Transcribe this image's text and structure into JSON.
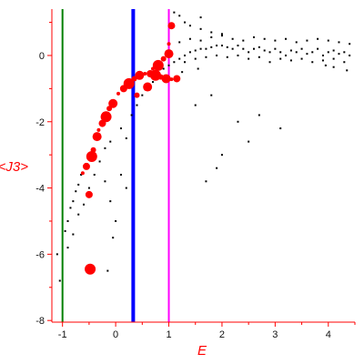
{
  "chart_data": {
    "type": "scatter",
    "title": "",
    "xlabel": "E",
    "ylabel": "<J3>",
    "xlim": [
      -1.2,
      4.5
    ],
    "ylim": [
      -8.05,
      1.4
    ],
    "x_ticks": [
      -1,
      0,
      1,
      2,
      3,
      4
    ],
    "y_ticks": [
      0,
      -2,
      -4,
      -6,
      -8
    ],
    "x_tick_labels": [
      "-1",
      "0",
      "1",
      "2",
      "3",
      "4"
    ],
    "y_tick_labels": [
      "0",
      "-2",
      "-4",
      "-6",
      "-8"
    ],
    "grid": false,
    "colors": {
      "axes": "#ff0000",
      "small_points": "#000000",
      "large_points": "#ff0000",
      "line_green": "#008000",
      "line_blue": "#0000ff",
      "line_magenta": "#ff00ff"
    },
    "vertical_lines": [
      {
        "x": -1.0,
        "color": "#008000"
      },
      {
        "x": 0.33,
        "color": "#0000ff"
      },
      {
        "x": 1.0,
        "color": "#ff00ff"
      }
    ],
    "large_points": [
      [
        -0.62,
        -3.55
      ],
      [
        -0.55,
        -3.35
      ],
      [
        -0.45,
        -3.05
      ],
      [
        -0.42,
        -2.85
      ],
      [
        -0.35,
        -2.45
      ],
      [
        -0.32,
        -2.25
      ],
      [
        -0.25,
        -2.05
      ],
      [
        -0.18,
        -1.85
      ],
      [
        -0.12,
        -1.6
      ],
      [
        -0.05,
        -1.45
      ],
      [
        0.05,
        -1.15
      ],
      [
        0.15,
        -1.0
      ],
      [
        0.25,
        -0.85
      ],
      [
        0.35,
        -0.7
      ],
      [
        0.45,
        -0.6
      ],
      [
        0.55,
        -0.55
      ],
      [
        0.65,
        -0.55
      ],
      [
        0.75,
        -0.6
      ],
      [
        0.85,
        -0.65
      ],
      [
        0.95,
        -0.7
      ],
      [
        1.05,
        -0.72
      ],
      [
        1.15,
        -0.7
      ],
      [
        0.8,
        -0.3
      ],
      [
        0.9,
        -0.1
      ],
      [
        1.0,
        0.05
      ],
      [
        0.7,
        -0.4
      ],
      [
        -0.5,
        -4.2
      ],
      [
        -0.48,
        -6.45
      ],
      [
        0.4,
        -1.2
      ],
      [
        0.6,
        -0.95
      ],
      [
        1.0,
        0.35
      ],
      [
        1.05,
        0.9
      ]
    ],
    "small_points": [
      [
        -1.1,
        -6.0
      ],
      [
        -1.05,
        -6.8
      ],
      [
        -0.95,
        -5.3
      ],
      [
        -0.9,
        -5.0
      ],
      [
        -0.85,
        -4.6
      ],
      [
        -0.8,
        -4.4
      ],
      [
        -0.75,
        -4.1
      ],
      [
        -0.7,
        -3.9
      ],
      [
        -0.65,
        -3.6
      ],
      [
        -0.9,
        -5.8
      ],
      [
        -0.8,
        -5.4
      ],
      [
        -0.7,
        -4.8
      ],
      [
        -0.6,
        -4.5
      ],
      [
        -0.5,
        -4.0
      ],
      [
        -0.4,
        -3.6
      ],
      [
        -0.3,
        -3.2
      ],
      [
        -0.2,
        -2.8
      ],
      [
        -0.1,
        -2.6
      ],
      [
        -0.2,
        -3.8
      ],
      [
        -0.1,
        -4.4
      ],
      [
        0.0,
        -5.0
      ],
      [
        0.1,
        -3.6
      ],
      [
        0.2,
        -4.0
      ],
      [
        -0.15,
        -6.5
      ],
      [
        -0.05,
        -5.5
      ],
      [
        0.1,
        -2.2
      ],
      [
        0.2,
        -2.5
      ],
      [
        0.3,
        -1.8
      ],
      [
        0.4,
        -1.5
      ],
      [
        0.5,
        -1.2
      ],
      [
        0.6,
        -1.0
      ],
      [
        0.7,
        -0.8
      ],
      [
        0.8,
        -0.6
      ],
      [
        0.9,
        -0.4
      ],
      [
        1.0,
        -0.3
      ],
      [
        1.1,
        -0.2
      ],
      [
        1.2,
        -0.1
      ],
      [
        1.3,
        0.0
      ],
      [
        1.4,
        0.1
      ],
      [
        1.5,
        0.15
      ],
      [
        1.6,
        0.2
      ],
      [
        1.7,
        0.2
      ],
      [
        1.8,
        0.25
      ],
      [
        1.9,
        0.3
      ],
      [
        2.0,
        0.3
      ],
      [
        2.1,
        0.25
      ],
      [
        2.2,
        0.2
      ],
      [
        2.3,
        0.3
      ],
      [
        2.4,
        0.2
      ],
      [
        2.5,
        0.1
      ],
      [
        2.6,
        0.2
      ],
      [
        2.7,
        0.25
      ],
      [
        2.8,
        0.15
      ],
      [
        2.9,
        0.1
      ],
      [
        3.0,
        0.2
      ],
      [
        3.1,
        0.1
      ],
      [
        3.2,
        0.0
      ],
      [
        3.3,
        0.15
      ],
      [
        3.4,
        0.1
      ],
      [
        3.5,
        0.2
      ],
      [
        3.6,
        0.05
      ],
      [
        3.7,
        0.1
      ],
      [
        3.8,
        0.2
      ],
      [
        3.9,
        0.0
      ],
      [
        4.0,
        0.1
      ],
      [
        4.1,
        0.15
      ],
      [
        4.2,
        0.05
      ],
      [
        4.3,
        0.1
      ],
      [
        4.4,
        0.0
      ],
      [
        1.3,
        -0.2
      ],
      [
        1.5,
        -0.1
      ],
      [
        1.7,
        -0.05
      ],
      [
        1.9,
        0.0
      ],
      [
        2.1,
        -0.05
      ],
      [
        2.3,
        0.0
      ],
      [
        2.5,
        -0.1
      ],
      [
        2.7,
        -0.05
      ],
      [
        2.9,
        -0.2
      ],
      [
        3.1,
        -0.1
      ],
      [
        3.3,
        -0.15
      ],
      [
        3.5,
        -0.1
      ],
      [
        3.7,
        -0.2
      ],
      [
        3.9,
        -0.15
      ],
      [
        4.1,
        -0.1
      ],
      [
        4.3,
        -0.2
      ],
      [
        1.2,
        0.4
      ],
      [
        1.4,
        0.5
      ],
      [
        1.6,
        0.45
      ],
      [
        1.8,
        0.55
      ],
      [
        2.0,
        0.6
      ],
      [
        2.2,
        0.5
      ],
      [
        2.4,
        0.45
      ],
      [
        2.6,
        0.55
      ],
      [
        2.8,
        0.5
      ],
      [
        3.0,
        0.45
      ],
      [
        3.2,
        0.5
      ],
      [
        3.4,
        0.4
      ],
      [
        3.6,
        0.45
      ],
      [
        3.8,
        0.5
      ],
      [
        4.0,
        0.45
      ],
      [
        4.2,
        0.4
      ],
      [
        4.4,
        0.35
      ],
      [
        1.4,
        0.9
      ],
      [
        1.6,
        0.8
      ],
      [
        1.8,
        0.7
      ],
      [
        2.0,
        0.65
      ],
      [
        1.2,
        1.2
      ],
      [
        1.3,
        1.0
      ],
      [
        1.1,
        1.3
      ],
      [
        1.6,
        1.15
      ],
      [
        2.3,
        -2.0
      ],
      [
        2.7,
        -1.8
      ],
      [
        3.1,
        -2.2
      ],
      [
        2.0,
        -3.0
      ],
      [
        2.5,
        -2.6
      ],
      [
        1.9,
        -3.4
      ],
      [
        1.7,
        -3.8
      ],
      [
        1.8,
        -1.2
      ],
      [
        1.5,
        -1.5
      ],
      [
        4.35,
        -0.45
      ],
      [
        4.1,
        -0.35
      ],
      [
        3.95,
        -0.3
      ],
      [
        1.55,
        -0.4
      ],
      [
        1.25,
        -0.5
      ]
    ]
  }
}
